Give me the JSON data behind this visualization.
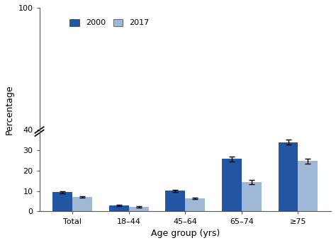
{
  "categories": [
    "Total",
    "18–44",
    "45–64",
    "65–74",
    "≥75"
  ],
  "values_2000": [
    9.4,
    3.0,
    10.2,
    25.8,
    34.0
  ],
  "values_2017": [
    7.0,
    2.3,
    6.4,
    14.3,
    24.8
  ],
  "errors_2000": [
    0.5,
    0.3,
    0.5,
    1.2,
    1.3
  ],
  "errors_2017": [
    0.4,
    0.3,
    0.4,
    1.0,
    1.2
  ],
  "color_2000": "#2255a4",
  "color_2017": "#a0b8d8",
  "xlabel": "Age group (yrs)",
  "ylabel": "Percentage",
  "ylim": [
    0,
    100
  ],
  "yticks": [
    0,
    10,
    20,
    30,
    40,
    100
  ],
  "legend_labels": [
    "2000",
    "2017"
  ],
  "bar_width": 0.35,
  "background_color": "#ffffff"
}
